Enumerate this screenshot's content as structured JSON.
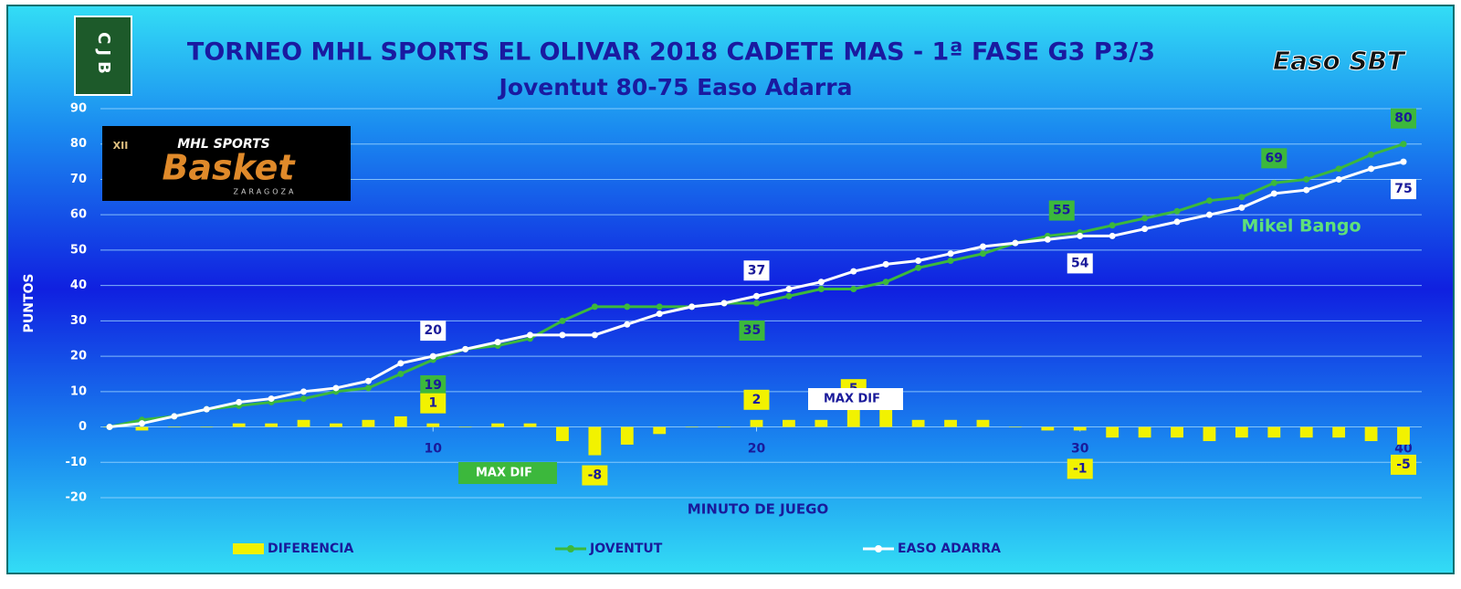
{
  "logos": {
    "left": "CJB",
    "right": "Easo SBT",
    "banner_top": "MHL SPORTS",
    "banner_main": "Basket",
    "banner_sub": "ZARAGOZA",
    "banner_badge": "XII"
  },
  "chart_data": {
    "type": "line",
    "title": "TORNEO MHL SPORTS EL OLIVAR 2018 CADETE MAS - 1ª FASE G3 P3/3",
    "subtitle": "Joventut 80-75 Easo Adarra",
    "y_label": "PUNTOS",
    "x_label": "MINUTO DE JUEGO",
    "x": [
      0,
      1,
      2,
      3,
      4,
      5,
      6,
      7,
      8,
      9,
      10,
      11,
      12,
      13,
      14,
      15,
      16,
      17,
      18,
      19,
      20,
      21,
      22,
      23,
      24,
      25,
      26,
      27,
      28,
      29,
      30,
      31,
      32,
      33,
      34,
      35,
      36,
      37,
      38,
      39,
      40
    ],
    "series": [
      {
        "name": "JOVENTUT",
        "color": "#3cb83c",
        "values": [
          0,
          2,
          3,
          5,
          6,
          7,
          8,
          10,
          11,
          15,
          19,
          22,
          23,
          25,
          30,
          34,
          34,
          34,
          34,
          35,
          35,
          37,
          39,
          39,
          41,
          45,
          47,
          49,
          52,
          54,
          55,
          57,
          59,
          61,
          64,
          65,
          69,
          70,
          73,
          77,
          80
        ]
      },
      {
        "name": "EASO ADARRA",
        "color": "#ffffff",
        "values": [
          0,
          1,
          3,
          5,
          7,
          8,
          10,
          11,
          13,
          18,
          20,
          22,
          24,
          26,
          26,
          26,
          29,
          32,
          34,
          35,
          37,
          39,
          41,
          44,
          46,
          47,
          49,
          51,
          52,
          53,
          54,
          54,
          56,
          58,
          60,
          62,
          66,
          67,
          70,
          73,
          75
        ]
      },
      {
        "name": "DIFERENCIA",
        "color": "#f2f200",
        "kind": "bar",
        "values": [
          0,
          -1,
          0,
          0,
          1,
          1,
          2,
          1,
          2,
          3,
          1,
          0,
          1,
          1,
          -4,
          -8,
          -5,
          -2,
          0,
          0,
          2,
          2,
          2,
          5,
          5,
          2,
          2,
          2,
          0,
          -1,
          -1,
          -3,
          -3,
          -3,
          -4,
          -3,
          -3,
          -3,
          -3,
          -4,
          -5
        ]
      }
    ],
    "annotations": [
      "MAX DIF",
      "MAX DIF",
      "Mikel Bango"
    ],
    "xlim": [
      0,
      40
    ],
    "xticks": [
      10,
      20,
      30,
      40
    ],
    "ylim": [
      -20,
      90
    ],
    "yticks": [
      -20,
      -10,
      0,
      10,
      20,
      30,
      40,
      50,
      60,
      70,
      80,
      90
    ],
    "grid": true,
    "legend": "bottom"
  }
}
